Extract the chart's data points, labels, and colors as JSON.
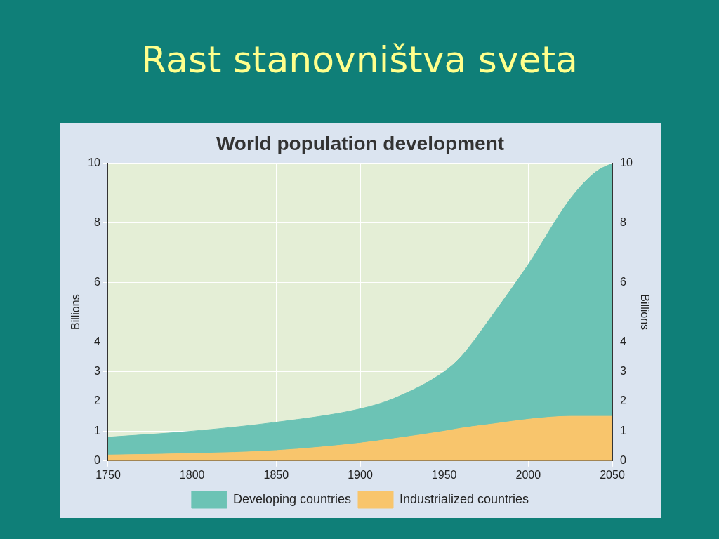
{
  "chart_data": {
    "type": "area",
    "title": "Rast stanovništva sveta",
    "subtitle": "World population development",
    "ylabel": "Billions",
    "y2label": "Billions",
    "stacked": true,
    "x": [
      1750,
      1800,
      1850,
      1900,
      1920,
      1950,
      1960,
      1980,
      2000,
      2025,
      2040,
      2050
    ],
    "series": [
      {
        "name": "Industrialized countries",
        "color": "#f8c56c",
        "values": [
          0.2,
          0.25,
          0.35,
          0.6,
          0.75,
          1.0,
          1.1,
          1.25,
          1.4,
          1.5,
          1.5,
          1.5
        ]
      },
      {
        "name": "Developing countries",
        "color": "#6cc3b5",
        "values": [
          0.6,
          0.75,
          0.95,
          1.15,
          1.35,
          2.0,
          2.4,
          3.75,
          5.2,
          7.3,
          8.2,
          8.5
        ]
      }
    ],
    "xlim": [
      1750,
      2050
    ],
    "xticks": [
      1750,
      1800,
      1850,
      1900,
      1950,
      2000,
      2050
    ],
    "ylim": [
      0,
      10
    ],
    "yticks": [
      0,
      1,
      2,
      3,
      4,
      6,
      8,
      10
    ],
    "y2lim": [
      0,
      10
    ],
    "y2ticks": [
      0,
      1,
      2,
      3,
      4,
      6,
      8,
      10
    ],
    "grid": true,
    "legend": "bottom"
  }
}
